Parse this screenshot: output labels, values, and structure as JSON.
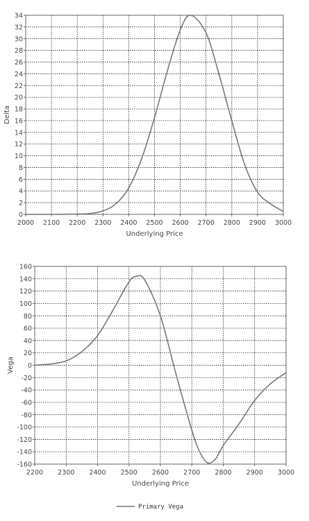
{
  "chart_data": [
    {
      "type": "line",
      "title": "",
      "xlabel": "Underlying Price",
      "ylabel": "Delta",
      "xlim": [
        2000,
        3000
      ],
      "ylim": [
        0,
        34
      ],
      "xticks": [
        2000,
        2100,
        2200,
        2300,
        2400,
        2500,
        2600,
        2700,
        2800,
        2900,
        3000
      ],
      "yticks": [
        0,
        2,
        4,
        6,
        8,
        10,
        12,
        14,
        16,
        18,
        20,
        22,
        24,
        26,
        28,
        30,
        32,
        34
      ],
      "grid": true,
      "series": [
        {
          "x": [
            2000,
            2100,
            2200,
            2250,
            2300,
            2350,
            2400,
            2450,
            2500,
            2550,
            2600,
            2640,
            2700,
            2750,
            2800,
            2850,
            2900,
            2950,
            3000
          ],
          "y": [
            0,
            0,
            0.05,
            0.15,
            0.6,
            1.8,
            4.5,
            9.5,
            16.5,
            24.5,
            31.5,
            34,
            31,
            24,
            16,
            8.5,
            3.8,
            1.8,
            0.5
          ]
        }
      ]
    },
    {
      "type": "line",
      "title": "",
      "xlabel": "Underlying Price",
      "ylabel": "Vega",
      "xlim": [
        2200,
        3000
      ],
      "ylim": [
        -160,
        160
      ],
      "xticks": [
        2200,
        2300,
        2400,
        2500,
        2600,
        2700,
        2800,
        2900,
        3000
      ],
      "yticks": [
        -160,
        -140,
        -120,
        -100,
        -80,
        -60,
        -40,
        -20,
        0,
        20,
        40,
        60,
        80,
        100,
        120,
        140,
        160
      ],
      "grid": true,
      "legend": "bottom-center",
      "series": [
        {
          "name": "Primary Vega",
          "x": [
            2200,
            2250,
            2300,
            2350,
            2400,
            2450,
            2500,
            2525,
            2550,
            2600,
            2650,
            2700,
            2725,
            2750,
            2775,
            2800,
            2850,
            2900,
            2950,
            3000
          ],
          "y": [
            0,
            2,
            7,
            22,
            48,
            90,
            135,
            144,
            138,
            80,
            -15,
            -105,
            -140,
            -158,
            -152,
            -130,
            -95,
            -57,
            -30,
            -12
          ]
        }
      ]
    }
  ]
}
